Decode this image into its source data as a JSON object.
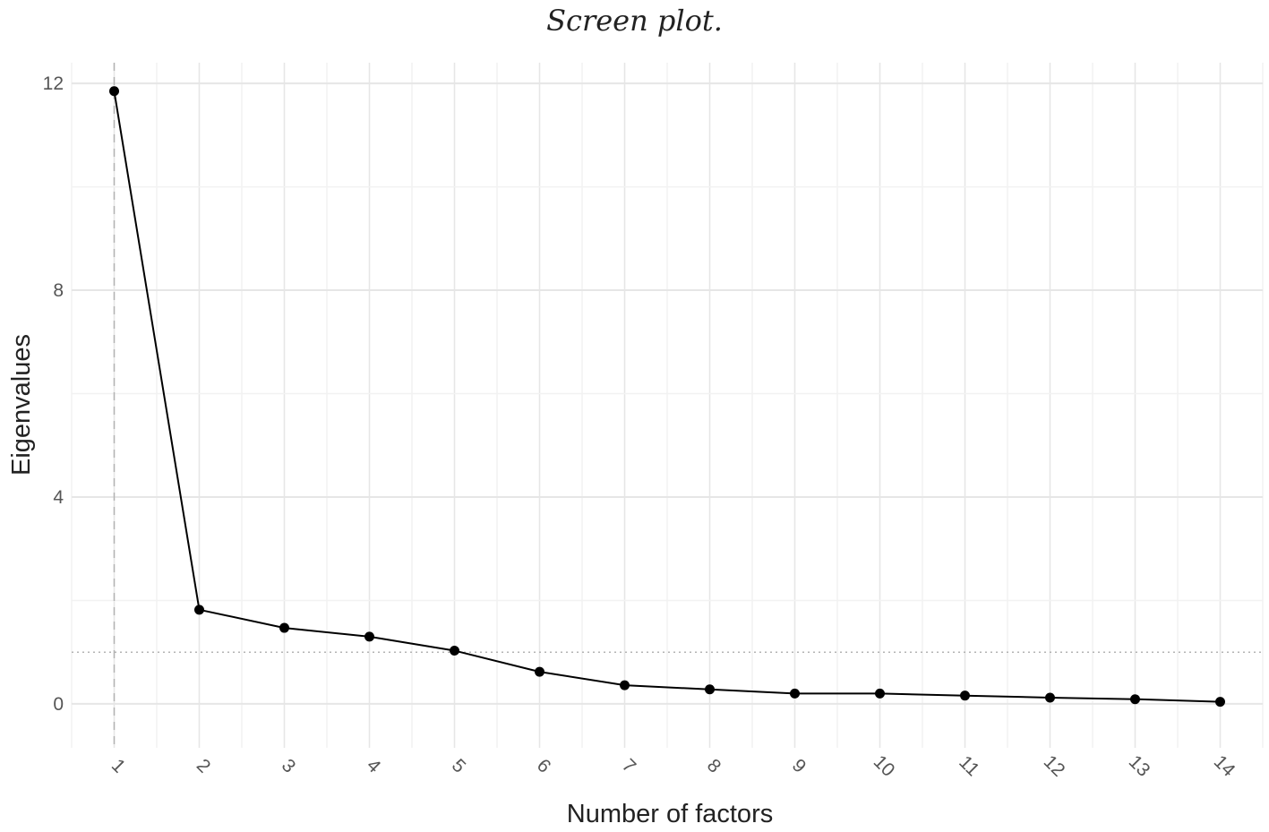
{
  "chart_data": {
    "type": "line",
    "title": "Screen plot.",
    "xlabel": "Number of factors",
    "ylabel": "Eigenvalues",
    "x": [
      1,
      2,
      3,
      4,
      5,
      6,
      7,
      8,
      9,
      10,
      11,
      12,
      13,
      14
    ],
    "series": [
      {
        "values": [
          11.85,
          1.82,
          1.47,
          1.3,
          1.03,
          0.62,
          0.36,
          0.28,
          0.2,
          0.2,
          0.16,
          0.12,
          0.09,
          0.04
        ]
      }
    ],
    "xlim": [
      0.5,
      14.5
    ],
    "ylim": [
      -0.85,
      12.4
    ],
    "y_ticks": [
      0,
      4,
      8,
      12
    ],
    "x_tick_rotation": -45,
    "reference_lines": {
      "vertical_dashed_x": 1,
      "horizontal_dotted_y": 1
    },
    "grid": true,
    "legend": "none",
    "colors": {
      "line": "#000000",
      "points": "#000000",
      "grid_major": "#e6e6e6",
      "grid_minor": "#f2f2f2",
      "reference": "#b3b3b3"
    }
  }
}
